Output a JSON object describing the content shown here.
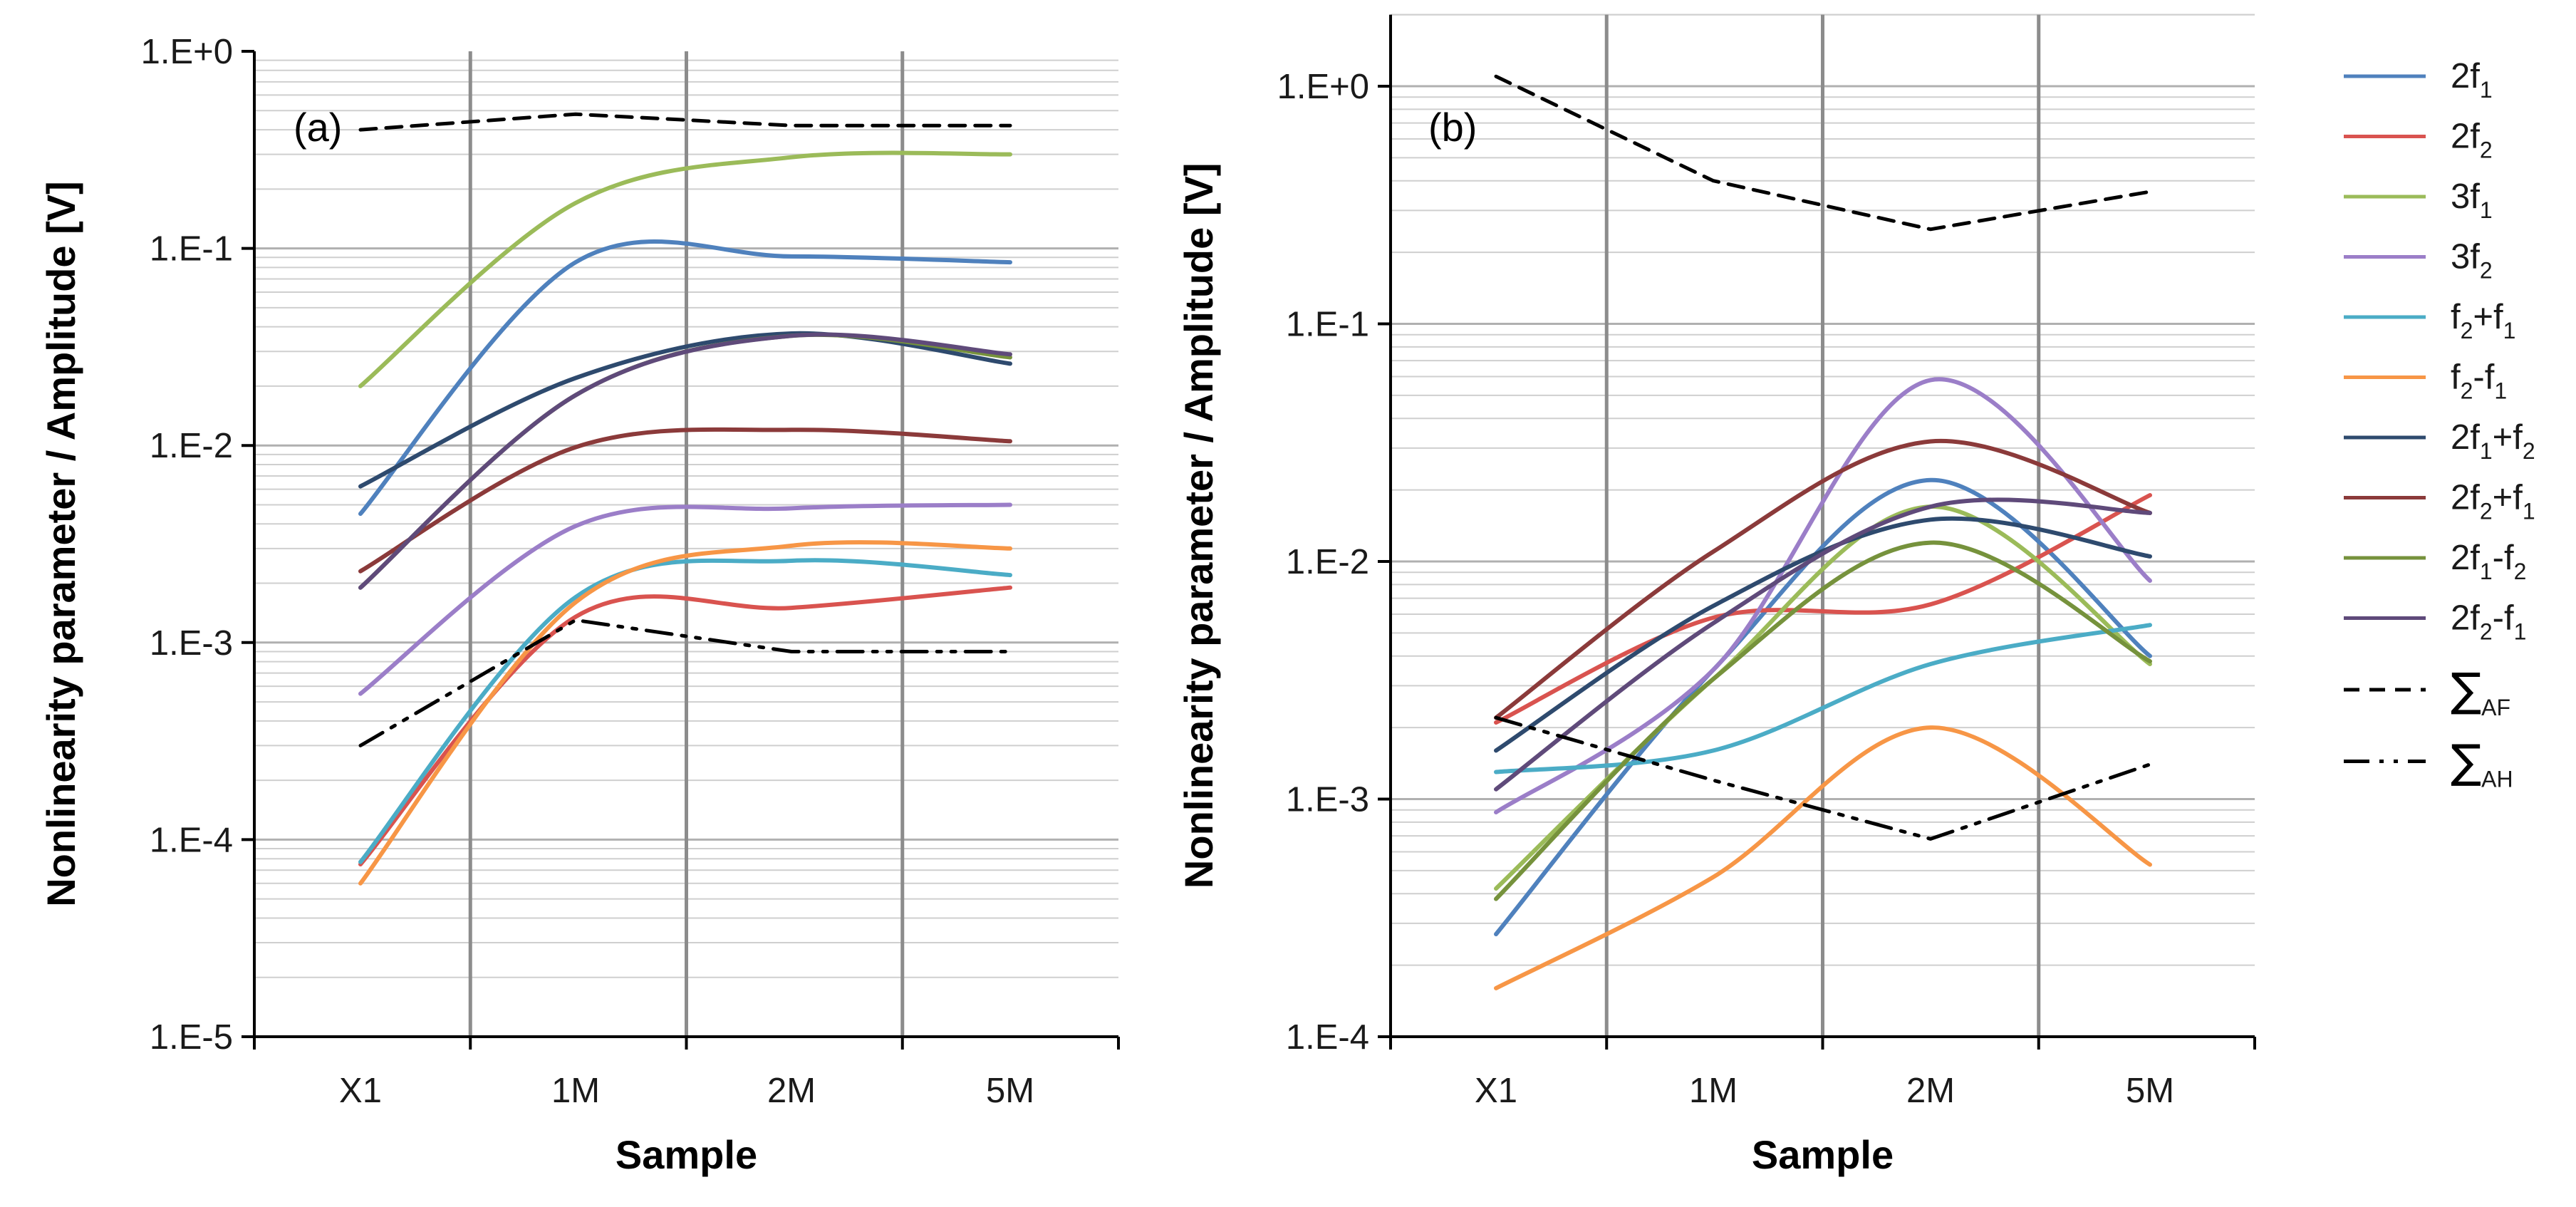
{
  "chart_data": [
    {
      "type": "line",
      "panel": "(a)",
      "xlabel": "Sample",
      "ylabel": "Nonlinearity parameter / Amplitude [V]",
      "yscale": "log",
      "ylim": [
        1e-05,
        1
      ],
      "categories": [
        "X1",
        "1M",
        "2M",
        "5M"
      ],
      "ytick_labels": [
        "1.E-5",
        "1.E-4",
        "1.E-3",
        "1.E-2",
        "1.E-1",
        "1.E+0"
      ],
      "series": [
        {
          "name": "2f1",
          "values": [
            0.0045,
            0.085,
            0.091,
            0.085
          ]
        },
        {
          "name": "2f2",
          "values": [
            7.5e-05,
            0.00135,
            0.0015,
            0.0019
          ]
        },
        {
          "name": "3f1",
          "values": [
            0.02,
            0.17,
            0.29,
            0.3
          ]
        },
        {
          "name": "3f2",
          "values": [
            0.00055,
            0.0039,
            0.0048,
            0.005
          ]
        },
        {
          "name": "f2+f1",
          "values": [
            7.7e-05,
            0.0017,
            0.0026,
            0.0022
          ]
        },
        {
          "name": "f2-f1",
          "values": [
            6e-05,
            0.0016,
            0.0031,
            0.003
          ]
        },
        {
          "name": "2f1+f2",
          "values": [
            0.0062,
            0.022,
            0.037,
            0.026
          ]
        },
        {
          "name": "2f2+f1",
          "values": [
            0.0023,
            0.0098,
            0.012,
            0.0105
          ]
        },
        {
          "name": "2f1-f2",
          "values": [
            0.0019,
            0.018,
            0.036,
            0.028
          ]
        },
        {
          "name": "2f2-f1",
          "values": [
            0.0019,
            0.018,
            0.036,
            0.029
          ]
        },
        {
          "name": "ΣAF",
          "values": [
            0.4,
            0.48,
            0.42,
            0.42
          ]
        },
        {
          "name": "ΣAH",
          "values": [
            0.0003,
            0.0013,
            0.0009,
            0.0009
          ]
        }
      ]
    },
    {
      "type": "line",
      "panel": "(b)",
      "xlabel": "Sample",
      "ylabel": "Nonlinearity parameter / Amplitude [V]",
      "yscale": "log",
      "ylim": [
        0.0001,
        2
      ],
      "categories": [
        "X1",
        "1M",
        "2M",
        "5M"
      ],
      "ytick_labels": [
        "1.E-4",
        "1.E-3",
        "1.E-2",
        "1.E-1",
        "1.E+0"
      ],
      "series": [
        {
          "name": "2f1",
          "values": [
            0.00027,
            0.0035,
            0.022,
            0.004
          ]
        },
        {
          "name": "2f2",
          "values": [
            0.0021,
            0.0058,
            0.0066,
            0.019
          ]
        },
        {
          "name": "3f1",
          "values": [
            0.00042,
            0.0032,
            0.017,
            0.0037
          ]
        },
        {
          "name": "3f2",
          "values": [
            0.00088,
            0.0035,
            0.058,
            0.0083
          ]
        },
        {
          "name": "f2+f1",
          "values": [
            0.0013,
            0.0016,
            0.0037,
            0.0054
          ]
        },
        {
          "name": "f2-f1",
          "values": [
            0.00016,
            0.00047,
            0.002,
            0.00053
          ]
        },
        {
          "name": "2f1+f2",
          "values": [
            0.0016,
            0.0065,
            0.015,
            0.0105
          ]
        },
        {
          "name": "2f2+f1",
          "values": [
            0.0022,
            0.011,
            0.032,
            0.016
          ]
        },
        {
          "name": "2f1-f2",
          "values": [
            0.00038,
            0.0032,
            0.012,
            0.0038
          ]
        },
        {
          "name": "2f2-f1",
          "values": [
            0.0011,
            0.0055,
            0.017,
            0.016
          ]
        },
        {
          "name": "ΣAF",
          "values": [
            1.1,
            0.4,
            0.25,
            0.36
          ]
        },
        {
          "name": "ΣAH",
          "values": [
            0.0022,
            0.0012,
            0.00068,
            0.0014
          ]
        }
      ]
    }
  ],
  "legend": {
    "items": [
      {
        "base": "2f",
        "sub": "1",
        "rest": "",
        "sub2": "",
        "color": "#4f81bd",
        "dash": ""
      },
      {
        "base": "2f",
        "sub": "2",
        "rest": "",
        "sub2": "",
        "color": "#d9534f",
        "dash": ""
      },
      {
        "base": "3f",
        "sub": "1",
        "rest": "",
        "sub2": "",
        "color": "#9bbb59",
        "dash": ""
      },
      {
        "base": "3f",
        "sub": "2",
        "rest": "",
        "sub2": "",
        "color": "#9b7ec8",
        "dash": ""
      },
      {
        "base": "f",
        "sub": "2",
        "rest": "+f",
        "sub2": "1",
        "color": "#4bacc6",
        "dash": ""
      },
      {
        "base": "f",
        "sub": "2",
        "rest": "-f",
        "sub2": "1",
        "color": "#f79646",
        "dash": ""
      },
      {
        "base": "2f",
        "sub": "1",
        "rest": "+f",
        "sub2": "2",
        "color": "#2e4a6e",
        "dash": ""
      },
      {
        "base": "2f",
        "sub": "2",
        "rest": "+f",
        "sub2": "1",
        "color": "#8b3a3a",
        "dash": ""
      },
      {
        "base": "2f",
        "sub": "1",
        "rest": "-f",
        "sub2": "2",
        "color": "#76923c",
        "dash": ""
      },
      {
        "base": "2f",
        "sub": "2",
        "rest": "-f",
        "sub2": "1",
        "color": "#5f4a7a",
        "dash": ""
      },
      {
        "base": "∑",
        "sub": "AF",
        "rest": "",
        "sub2": "",
        "color": "#000000",
        "dash": "22,14"
      },
      {
        "base": "∑",
        "sub": "AH",
        "rest": "",
        "sub2": "",
        "color": "#000000",
        "dash": "36,14,6,14,6,14"
      }
    ]
  }
}
